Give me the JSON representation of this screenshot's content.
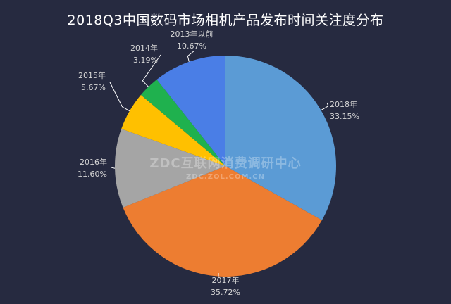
{
  "chart_data": {
    "type": "pie",
    "title": "2018Q3中国数码市场相机产品发布时间关注度分布",
    "unit": "%",
    "slices": [
      {
        "label": "2018年",
        "value": 33.15,
        "value_label": "33.15%",
        "color": "#5b9bd5"
      },
      {
        "label": "2017年",
        "value": 35.72,
        "value_label": "35.72%",
        "color": "#ed7d31"
      },
      {
        "label": "2016年",
        "value": 11.6,
        "value_label": "11.60%",
        "color": "#a5a5a5"
      },
      {
        "label": "2015年",
        "value": 5.67,
        "value_label": "5.67%",
        "color": "#ffc000"
      },
      {
        "label": "2014年",
        "value": 3.19,
        "value_label": "3.19%",
        "color": "#1fb14e"
      },
      {
        "label": "2013年以前",
        "value": 10.67,
        "value_label": "10.67%",
        "color": "#4a7ee6"
      }
    ],
    "start_angle": "12 o'clock",
    "direction": "clockwise",
    "legend": "none"
  },
  "watermark": {
    "main": "ZDC互联网消费调研中心",
    "sub": "ZDC.ZOL.COM.CN"
  },
  "colors": {
    "background": "#262a40",
    "text": "#ffffff",
    "label_text": "#d6d6d6",
    "leader_line": "#ffffff"
  }
}
